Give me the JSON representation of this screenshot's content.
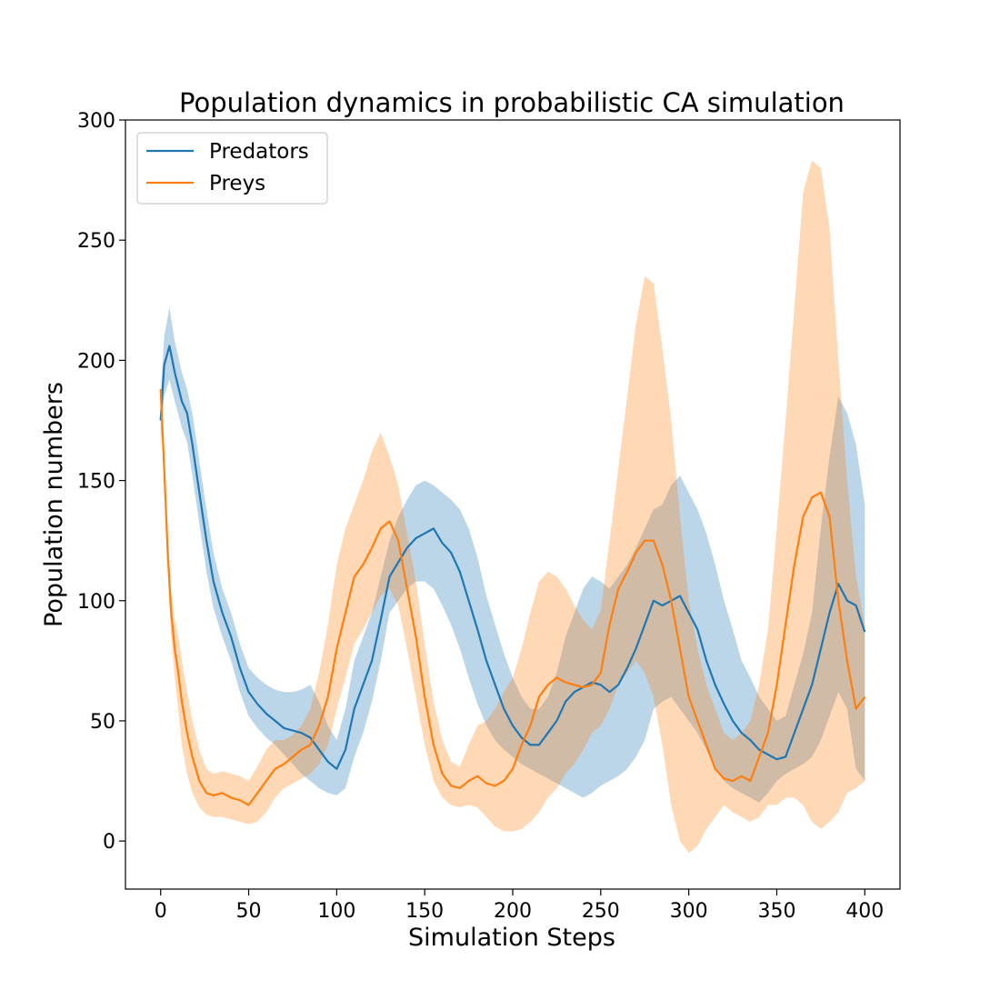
{
  "chart_data": {
    "type": "line",
    "title": "Population dynamics in probabilistic CA simulation",
    "xlabel": "Simulation Steps",
    "ylabel": "Population numbers",
    "xlim": [
      -20,
      420
    ],
    "ylim": [
      -20,
      300
    ],
    "xticks": [
      0,
      50,
      100,
      150,
      200,
      250,
      300,
      350,
      400
    ],
    "yticks": [
      0,
      50,
      100,
      150,
      200,
      250,
      300
    ],
    "grid": false,
    "legend_position": "top-left",
    "series": [
      {
        "name": "Predators",
        "color": "#1f77b4",
        "band_color": "#1f77b4",
        "band_opacity": 0.3,
        "x": [
          0,
          2,
          5,
          8,
          12,
          15,
          18,
          22,
          26,
          30,
          35,
          40,
          45,
          50,
          55,
          60,
          65,
          70,
          75,
          80,
          85,
          90,
          95,
          100,
          105,
          110,
          115,
          120,
          125,
          130,
          135,
          140,
          145,
          150,
          155,
          160,
          165,
          170,
          175,
          180,
          185,
          190,
          195,
          200,
          205,
          210,
          215,
          220,
          225,
          230,
          235,
          240,
          245,
          250,
          255,
          260,
          265,
          270,
          275,
          280,
          285,
          290,
          295,
          300,
          305,
          310,
          315,
          320,
          325,
          330,
          335,
          340,
          345,
          350,
          355,
          360,
          365,
          370,
          375,
          380,
          385,
          390,
          395,
          400
        ],
        "mean": [
          175,
          198,
          206,
          195,
          183,
          178,
          165,
          145,
          125,
          108,
          95,
          85,
          72,
          62,
          57,
          53,
          50,
          47,
          46,
          45,
          43,
          38,
          33,
          30,
          38,
          55,
          65,
          75,
          92,
          110,
          116,
          122,
          126,
          128,
          130,
          124,
          120,
          112,
          100,
          88,
          75,
          65,
          55,
          48,
          43,
          40,
          40,
          45,
          50,
          58,
          62,
          64,
          66,
          65,
          62,
          65,
          72,
          80,
          90,
          100,
          98,
          100,
          102,
          95,
          88,
          75,
          65,
          57,
          50,
          45,
          42,
          38,
          36,
          34,
          35,
          45,
          55,
          65,
          80,
          95,
          107,
          100,
          98,
          87
        ],
        "lower": [
          165,
          185,
          192,
          183,
          172,
          166,
          152,
          132,
          112,
          97,
          85,
          75,
          62,
          52,
          47,
          43,
          40,
          36,
          32,
          28,
          25,
          22,
          20,
          19,
          22,
          35,
          45,
          58,
          75,
          95,
          100,
          105,
          108,
          108,
          105,
          98,
          90,
          80,
          68,
          57,
          48,
          42,
          38,
          35,
          32,
          30,
          28,
          26,
          24,
          22,
          20,
          18,
          20,
          23,
          25,
          27,
          30,
          35,
          42,
          55,
          58,
          60,
          55,
          50,
          45,
          38,
          30,
          25,
          22,
          20,
          18,
          16,
          20,
          25,
          28,
          30,
          32,
          35,
          42,
          52,
          62,
          55,
          30,
          25
        ],
        "upper": [
          185,
          210,
          222,
          208,
          195,
          188,
          178,
          158,
          138,
          120,
          105,
          95,
          82,
          72,
          68,
          65,
          63,
          62,
          62,
          63,
          65,
          58,
          48,
          42,
          55,
          75,
          85,
          95,
          110,
          125,
          135,
          142,
          148,
          150,
          148,
          145,
          142,
          138,
          130,
          118,
          102,
          90,
          78,
          68,
          60,
          55,
          55,
          60,
          70,
          85,
          95,
          105,
          110,
          108,
          105,
          110,
          115,
          122,
          130,
          138,
          140,
          148,
          152,
          145,
          138,
          128,
          115,
          100,
          88,
          75,
          68,
          60,
          55,
          50,
          52,
          65,
          78,
          95,
          130,
          160,
          185,
          178,
          165,
          140
        ]
      },
      {
        "name": "Preys",
        "color": "#ff7f0e",
        "band_color": "#ff7f0e",
        "band_opacity": 0.3,
        "x": [
          0,
          2,
          4,
          6,
          8,
          10,
          12,
          15,
          18,
          22,
          26,
          30,
          35,
          40,
          45,
          50,
          55,
          60,
          65,
          70,
          75,
          80,
          85,
          90,
          95,
          100,
          105,
          110,
          115,
          120,
          125,
          130,
          135,
          140,
          145,
          150,
          155,
          160,
          165,
          170,
          175,
          180,
          185,
          190,
          195,
          200,
          205,
          210,
          215,
          220,
          225,
          230,
          235,
          240,
          245,
          250,
          255,
          260,
          265,
          270,
          275,
          280,
          285,
          290,
          295,
          300,
          305,
          310,
          315,
          320,
          325,
          330,
          335,
          340,
          345,
          350,
          355,
          360,
          365,
          370,
          375,
          380,
          385,
          390,
          395,
          400
        ],
        "mean": [
          188,
          155,
          120,
          95,
          80,
          70,
          58,
          45,
          35,
          25,
          20,
          19,
          20,
          18,
          17,
          15,
          20,
          25,
          30,
          32,
          35,
          38,
          40,
          48,
          60,
          80,
          95,
          110,
          115,
          122,
          130,
          133,
          125,
          105,
          85,
          60,
          40,
          28,
          23,
          22,
          25,
          27,
          24,
          23,
          25,
          30,
          40,
          48,
          60,
          65,
          68,
          66,
          65,
          64,
          65,
          70,
          90,
          105,
          112,
          120,
          125,
          125,
          115,
          100,
          80,
          60,
          50,
          40,
          30,
          26,
          25,
          27,
          25,
          35,
          45,
          65,
          90,
          115,
          135,
          143,
          145,
          135,
          100,
          75,
          55,
          60
        ],
        "lower": [
          185,
          150,
          112,
          85,
          68,
          55,
          40,
          28,
          20,
          14,
          11,
          10,
          10,
          9,
          8,
          7,
          8,
          12,
          18,
          22,
          24,
          26,
          28,
          32,
          40,
          55,
          68,
          82,
          88,
          95,
          102,
          105,
          98,
          80,
          60,
          40,
          25,
          18,
          15,
          14,
          15,
          14,
          10,
          6,
          4,
          4,
          5,
          8,
          12,
          18,
          22,
          28,
          32,
          38,
          45,
          48,
          55,
          65,
          70,
          75,
          70,
          60,
          40,
          15,
          0,
          -5,
          -2,
          5,
          10,
          15,
          12,
          10,
          8,
          10,
          15,
          15,
          18,
          18,
          15,
          8,
          5,
          8,
          12,
          20,
          22,
          25
        ],
        "upper": [
          192,
          162,
          128,
          104,
          92,
          85,
          75,
          62,
          50,
          38,
          30,
          28,
          29,
          28,
          27,
          25,
          31,
          38,
          42,
          42,
          44,
          48,
          55,
          70,
          90,
          115,
          130,
          140,
          150,
          162,
          170,
          160,
          148,
          128,
          108,
          82,
          58,
          42,
          33,
          31,
          40,
          48,
          50,
          55,
          62,
          68,
          80,
          95,
          108,
          112,
          110,
          105,
          98,
          92,
          88,
          96,
          125,
          155,
          185,
          215,
          235,
          232,
          205,
          175,
          135,
          100,
          80,
          65,
          55,
          45,
          42,
          45,
          50,
          65,
          88,
          130,
          175,
          222,
          270,
          283,
          280,
          255,
          200,
          150,
          110,
          90
        ]
      }
    ]
  }
}
